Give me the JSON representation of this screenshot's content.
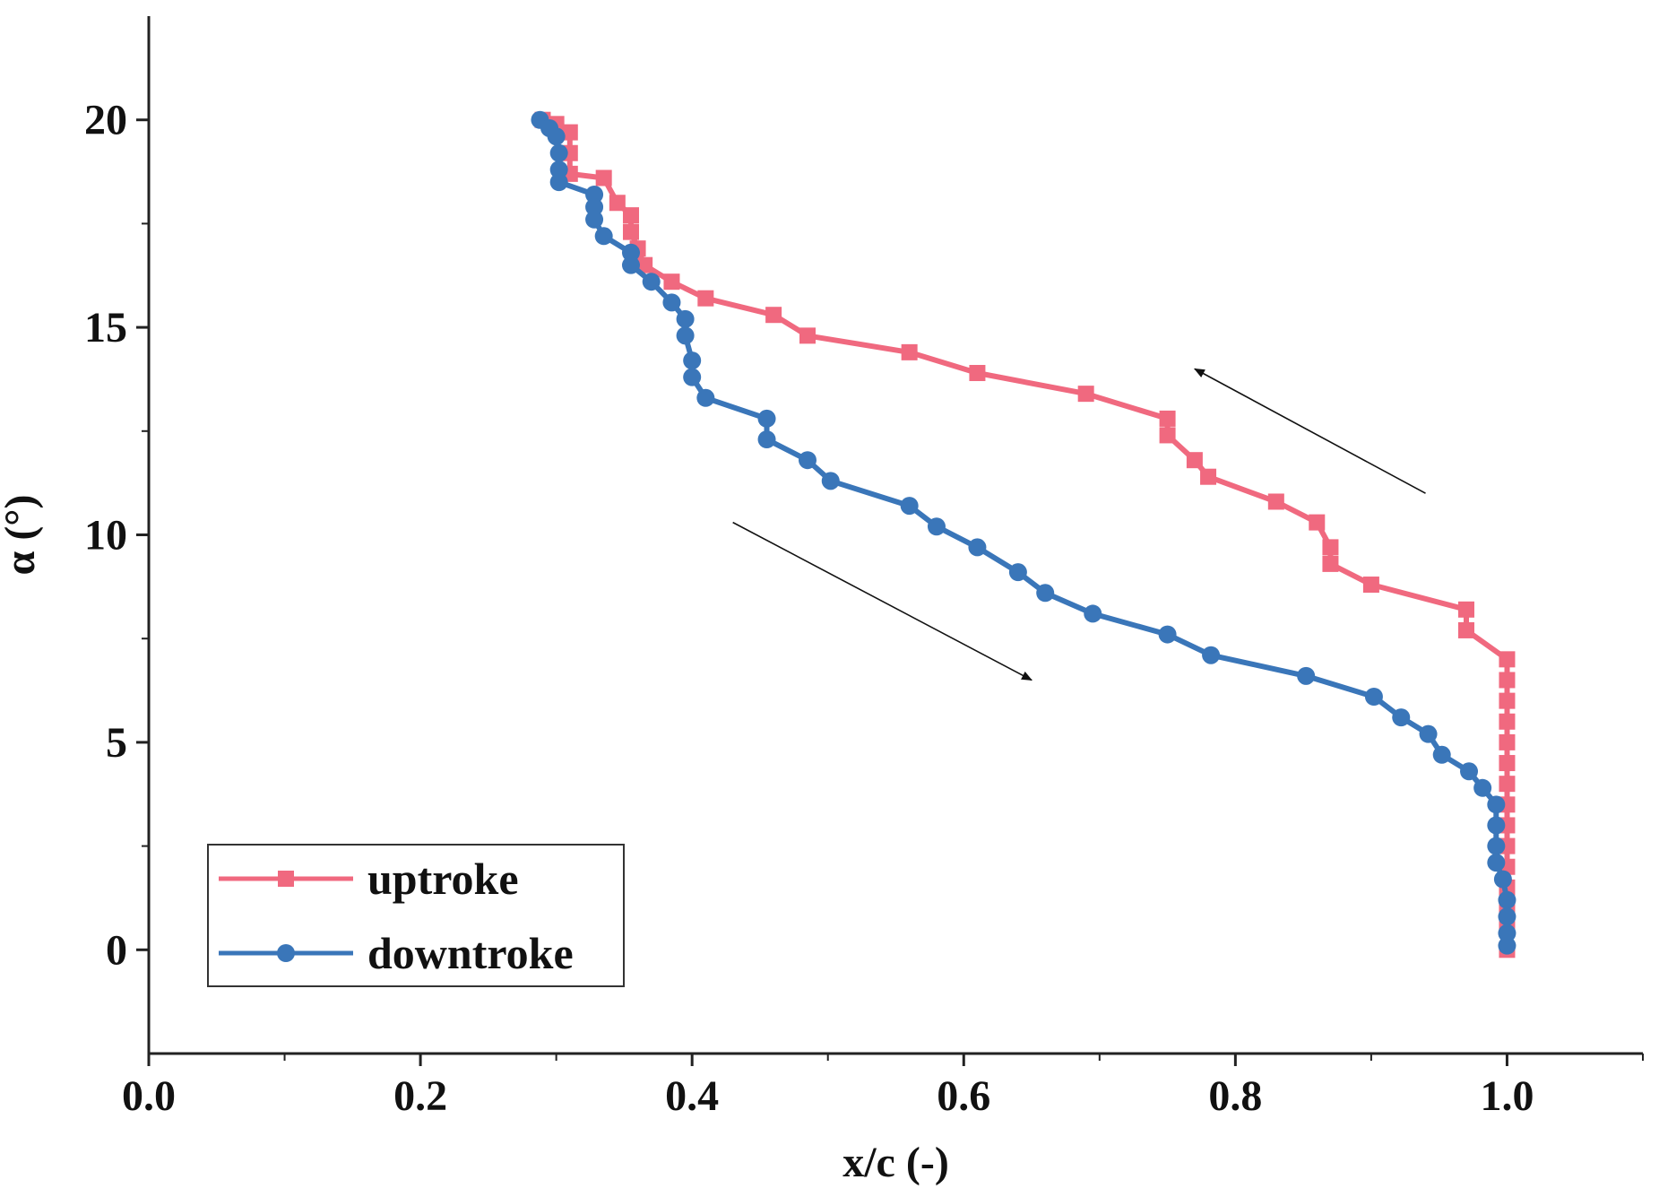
{
  "chart_data": {
    "type": "line",
    "title": "",
    "xlabel": "x/c (-)",
    "ylabel": "α (°)",
    "xlim": [
      0.0,
      1.1
    ],
    "ylim": [
      -2.5,
      22.5
    ],
    "x_ticks": [
      0.0,
      0.2,
      0.4,
      0.6,
      0.8,
      1.0
    ],
    "x_tick_labels": [
      "0.0",
      "0.2",
      "0.4",
      "0.6",
      "0.8",
      "1.0"
    ],
    "y_ticks": [
      0,
      5,
      10,
      15,
      20
    ],
    "y_tick_labels": [
      "0",
      "5",
      "10",
      "15",
      "20"
    ],
    "grid": false,
    "legend_position": "bottom-left",
    "series": [
      {
        "name": "uptroke",
        "color": "#f0697f",
        "marker": "square",
        "points": [
          [
            1.0,
            0.0
          ],
          [
            1.0,
            0.5
          ],
          [
            1.0,
            1.0
          ],
          [
            1.0,
            1.5
          ],
          [
            1.0,
            2.0
          ],
          [
            1.0,
            2.5
          ],
          [
            1.0,
            3.0
          ],
          [
            1.0,
            3.5
          ],
          [
            1.0,
            4.0
          ],
          [
            1.0,
            4.5
          ],
          [
            1.0,
            5.0
          ],
          [
            1.0,
            5.5
          ],
          [
            1.0,
            6.0
          ],
          [
            1.0,
            6.5
          ],
          [
            1.0,
            7.0
          ],
          [
            0.97,
            7.7
          ],
          [
            0.97,
            8.2
          ],
          [
            0.9,
            8.8
          ],
          [
            0.87,
            9.3
          ],
          [
            0.87,
            9.7
          ],
          [
            0.86,
            10.3
          ],
          [
            0.83,
            10.8
          ],
          [
            0.78,
            11.4
          ],
          [
            0.77,
            11.8
          ],
          [
            0.75,
            12.4
          ],
          [
            0.75,
            12.8
          ],
          [
            0.69,
            13.4
          ],
          [
            0.61,
            13.9
          ],
          [
            0.56,
            14.4
          ],
          [
            0.485,
            14.8
          ],
          [
            0.46,
            15.3
          ],
          [
            0.41,
            15.7
          ],
          [
            0.385,
            16.1
          ],
          [
            0.365,
            16.5
          ],
          [
            0.36,
            16.9
          ],
          [
            0.355,
            17.3
          ],
          [
            0.355,
            17.7
          ],
          [
            0.345,
            18.0
          ],
          [
            0.335,
            18.6
          ],
          [
            0.31,
            18.7
          ],
          [
            0.31,
            19.2
          ],
          [
            0.31,
            19.7
          ],
          [
            0.3,
            19.9
          ],
          [
            0.29,
            20.0
          ]
        ]
      },
      {
        "name": "downtroke",
        "color": "#3a76b9",
        "marker": "circle",
        "points": [
          [
            0.288,
            20.0
          ],
          [
            0.295,
            19.8
          ],
          [
            0.3,
            19.6
          ],
          [
            0.302,
            19.2
          ],
          [
            0.302,
            18.8
          ],
          [
            0.302,
            18.5
          ],
          [
            0.328,
            18.2
          ],
          [
            0.328,
            17.9
          ],
          [
            0.328,
            17.6
          ],
          [
            0.335,
            17.2
          ],
          [
            0.355,
            16.8
          ],
          [
            0.355,
            16.5
          ],
          [
            0.37,
            16.1
          ],
          [
            0.385,
            15.6
          ],
          [
            0.395,
            15.2
          ],
          [
            0.395,
            14.8
          ],
          [
            0.4,
            14.2
          ],
          [
            0.4,
            13.8
          ],
          [
            0.41,
            13.3
          ],
          [
            0.455,
            12.8
          ],
          [
            0.455,
            12.3
          ],
          [
            0.485,
            11.8
          ],
          [
            0.502,
            11.3
          ],
          [
            0.56,
            10.7
          ],
          [
            0.58,
            10.2
          ],
          [
            0.61,
            9.7
          ],
          [
            0.64,
            9.1
          ],
          [
            0.66,
            8.6
          ],
          [
            0.695,
            8.1
          ],
          [
            0.75,
            7.6
          ],
          [
            0.782,
            7.1
          ],
          [
            0.852,
            6.6
          ],
          [
            0.902,
            6.1
          ],
          [
            0.922,
            5.6
          ],
          [
            0.942,
            5.2
          ],
          [
            0.952,
            4.7
          ],
          [
            0.972,
            4.3
          ],
          [
            0.982,
            3.9
          ],
          [
            0.992,
            3.5
          ],
          [
            0.992,
            3.0
          ],
          [
            0.992,
            2.5
          ],
          [
            0.992,
            2.1
          ],
          [
            0.997,
            1.7
          ],
          [
            1.0,
            1.2
          ],
          [
            1.0,
            0.8
          ],
          [
            1.0,
            0.4
          ],
          [
            1.0,
            0.1
          ]
        ]
      }
    ],
    "annotations": [
      {
        "type": "arrow",
        "from": [
          0.94,
          11.0
        ],
        "to": [
          0.77,
          14.0
        ],
        "direction": "up-left"
      },
      {
        "type": "arrow",
        "from": [
          0.43,
          10.3
        ],
        "to": [
          0.65,
          6.5
        ],
        "direction": "down-right"
      }
    ]
  }
}
